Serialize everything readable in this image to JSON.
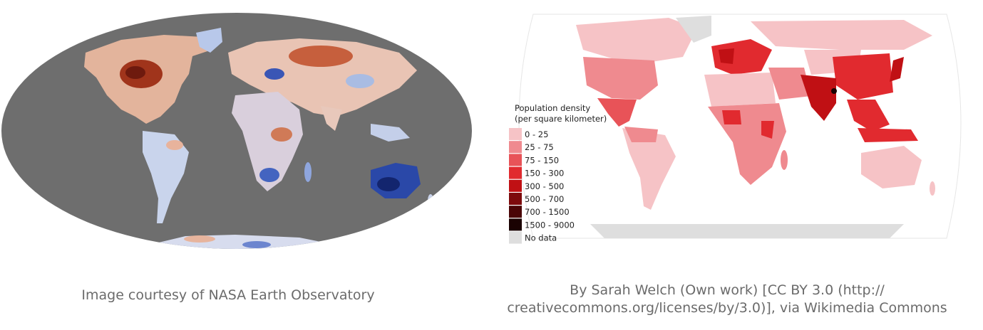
{
  "left_map": {
    "caption": "Image courtesy of NASA Earth Observatory",
    "ocean_color": "#6e6e6e",
    "warm_color": "#c0532f",
    "cold_color": "#2f52b8"
  },
  "right_map": {
    "legend": {
      "title_line1": "Population density",
      "title_line2": "(per square kilometer)",
      "items": [
        {
          "label": "0 - 25",
          "color": "#f6c3c6"
        },
        {
          "label": "25 - 75",
          "color": "#ef8a8f"
        },
        {
          "label": "75 - 150",
          "color": "#e85358"
        },
        {
          "label": "150 - 300",
          "color": "#e12a2f"
        },
        {
          "label": "300 - 500",
          "color": "#c01014"
        },
        {
          "label": "500 - 700",
          "color": "#7d0a0c"
        },
        {
          "label": "700 - 1500",
          "color": "#4a0506"
        },
        {
          "label": "1500 - 9000",
          "color": "#1a0202"
        },
        {
          "label": "No data",
          "color": "#dedede"
        }
      ]
    },
    "caption_line1": "By Sarah Welch (Own work) [CC BY 3.0 (http://",
    "caption_line2": "creativecommons.org/licenses/by/3.0)], via Wikimedia Commons"
  }
}
